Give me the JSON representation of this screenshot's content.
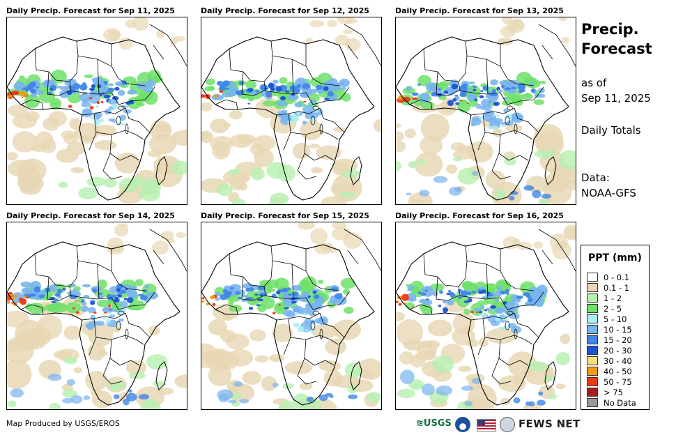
{
  "panels": [
    {
      "title": "Daily Precip. Forecast for Sep 11, 2025",
      "variant": 0
    },
    {
      "title": "Daily Precip. Forecast for Sep 12, 2025",
      "variant": 1
    },
    {
      "title": "Daily Precip. Forecast for Sep 13, 2025",
      "variant": 2
    },
    {
      "title": "Daily Precip. Forecast for Sep 14, 2025",
      "variant": 3
    },
    {
      "title": "Daily Precip. Forecast for Sep 15, 2025",
      "variant": 4
    },
    {
      "title": "Daily Precip. Forecast for Sep 16, 2025",
      "variant": 5
    }
  ],
  "sidebar": {
    "title_line1": "Precip.",
    "title_line2": "Forecast",
    "asof_line1": "as of",
    "asof_line2": "Sep 11, 2025",
    "totals": "Daily Totals",
    "data_line1": "Data:",
    "data_line2": "NOAA-GFS"
  },
  "legend": {
    "title": "PPT (mm)",
    "items": [
      {
        "label": "0 - 0.1",
        "color": "#ffffff"
      },
      {
        "label": "0.1 - 1",
        "color": "#e8d7b4"
      },
      {
        "label": "1 - 2",
        "color": "#b7f0b0"
      },
      {
        "label": "2 - 5",
        "color": "#6fe06a"
      },
      {
        "label": "5 - 10",
        "color": "#a8eef2"
      },
      {
        "label": "10 - 15",
        "color": "#78b4f0"
      },
      {
        "label": "15 - 20",
        "color": "#3f86e6"
      },
      {
        "label": "20 - 30",
        "color": "#1a53d6"
      },
      {
        "label": "30 - 40",
        "color": "#f6de86"
      },
      {
        "label": "40 - 50",
        "color": "#f29a12"
      },
      {
        "label": "50 - 75",
        "color": "#ee3a10"
      },
      {
        "label": "> 75",
        "color": "#a61c1c"
      },
      {
        "label": "No Data",
        "color": "#999999"
      }
    ]
  },
  "footer": {
    "credit": "Map Produced by USGS/EROS",
    "usgs_logo": "≋USGS",
    "fews_logo": "FEWS NET"
  }
}
